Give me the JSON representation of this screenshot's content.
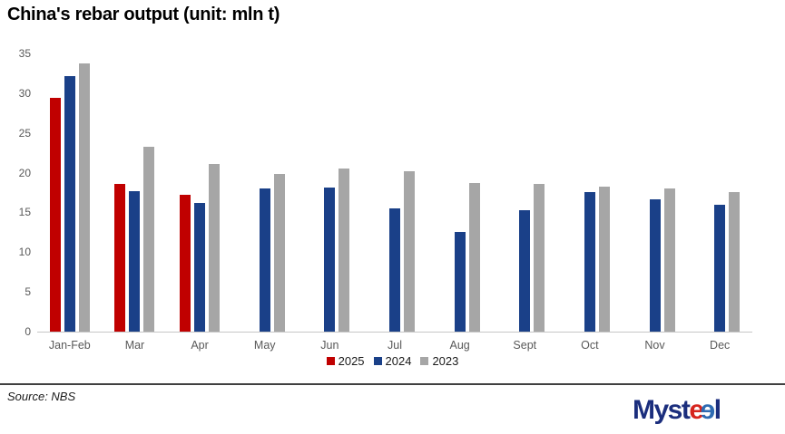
{
  "title": "China's rebar output (unit: mln t)",
  "source": "Source: NBS",
  "logo": {
    "myst": "Myst",
    "e_red": "e",
    "e_blue": "e",
    "l": "l"
  },
  "colors": {
    "red": "#c00000",
    "blue": "#1a4088",
    "gray": "#a6a6a6",
    "axis_line": "#c6c6c6",
    "tick_text": "#595959",
    "separator": "#404040"
  },
  "chart_data": {
    "type": "bar",
    "title": "China's rebar output (unit: mln t)",
    "categories": [
      "Jan-Feb",
      "Mar",
      "Apr",
      "May",
      "Jun",
      "Jul",
      "Aug",
      "Sept",
      "Oct",
      "Nov",
      "Dec"
    ],
    "series": [
      {
        "name": "2025",
        "color": "red",
        "values": [
          29.4,
          18.6,
          17.2,
          null,
          null,
          null,
          null,
          null,
          null,
          null,
          null
        ]
      },
      {
        "name": "2024",
        "color": "blue",
        "values": [
          32.1,
          17.7,
          16.2,
          18.0,
          18.1,
          15.5,
          12.5,
          15.3,
          17.6,
          16.6,
          16.0
        ]
      },
      {
        "name": "2023",
        "color": "gray",
        "values": [
          33.8,
          23.3,
          21.1,
          19.8,
          20.5,
          20.2,
          18.7,
          18.6,
          18.2,
          18.0,
          17.6
        ]
      }
    ],
    "ylim": [
      0,
      35
    ],
    "ytick_step": 5,
    "xlabel": "",
    "ylabel": "",
    "grid": false,
    "legend": [
      "2025",
      "2024",
      "2023"
    ],
    "legend_position": "bottom-center"
  }
}
